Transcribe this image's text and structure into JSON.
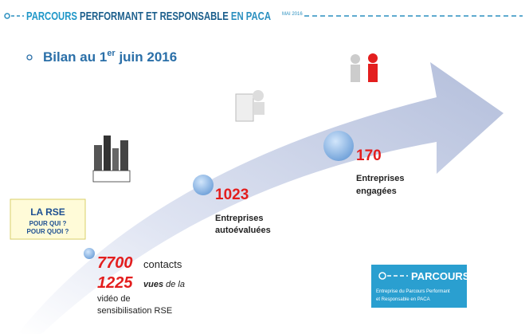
{
  "header": {
    "title_parts": [
      "PARCOURS",
      " PERFORMANT ET RESPONSABLE",
      " EN PACA"
    ],
    "date": "MAI 2016"
  },
  "subtitle": {
    "before": "Bilan au 1",
    "sup": "er",
    "after": " juin 2016"
  },
  "milestones": [
    {
      "number": "7700",
      "text": "contacts"
    },
    {
      "number": "1225",
      "bold": "vues",
      "text": "de la",
      "line2": "vidéo de",
      "line3": "sensibilisation RSE"
    },
    {
      "number": "1023",
      "line1": "Entreprises",
      "line2": "autoévaluées"
    },
    {
      "number": "170",
      "line1": "Entreprises",
      "line2": "engagées"
    }
  ],
  "rse_box": {
    "title": "LA RSE",
    "line1": "POUR QUI ?",
    "line2": "POUR QUOI ?"
  },
  "logo": {
    "title": "PARCOURS",
    "line1": "Entreprise du Parcours Performant",
    "line2": "et Responsable en PACA"
  }
}
